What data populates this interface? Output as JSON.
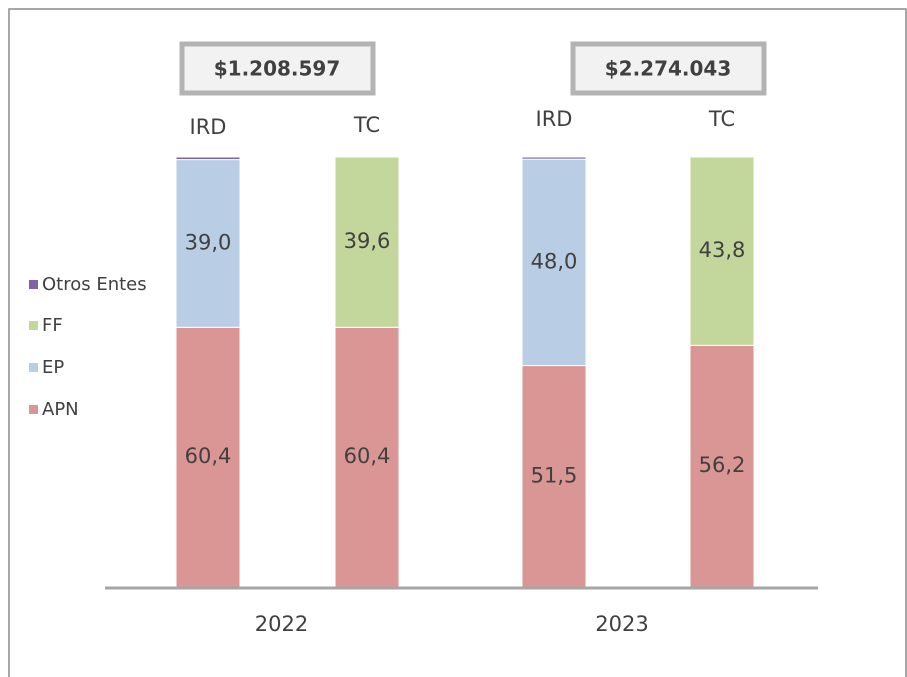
{
  "chart_data": {
    "type": "stacked_bar",
    "categories": [
      "IRD",
      "TC",
      "IRD",
      "TC"
    ],
    "groups": [
      {
        "label": "2022",
        "total": "$1.208.597"
      },
      {
        "label": "2023",
        "total": "$2.274.043"
      }
    ],
    "series": [
      {
        "name": "APN",
        "color": "#d99694",
        "values": [
          60.4,
          60.4,
          51.5,
          56.2
        ],
        "value_labels": [
          "60,4",
          "60,4",
          "51,5",
          "56,2"
        ]
      },
      {
        "name": "EP",
        "color": "#b9cde5",
        "values": [
          39.0,
          null,
          48.0,
          null
        ],
        "value_labels": [
          "39,0",
          null,
          "48,0",
          null
        ]
      },
      {
        "name": "FF",
        "color": "#c3d69b",
        "values": [
          null,
          39.6,
          null,
          43.8
        ],
        "value_labels": [
          null,
          "39,6",
          null,
          "43,8"
        ]
      },
      {
        "name": "Otros Entes",
        "color": "#8064a2",
        "values": [
          0.6,
          null,
          0.5,
          null
        ]
      }
    ],
    "legend_order": [
      3,
      2,
      1,
      0
    ],
    "ylim": [
      0,
      100
    ]
  }
}
